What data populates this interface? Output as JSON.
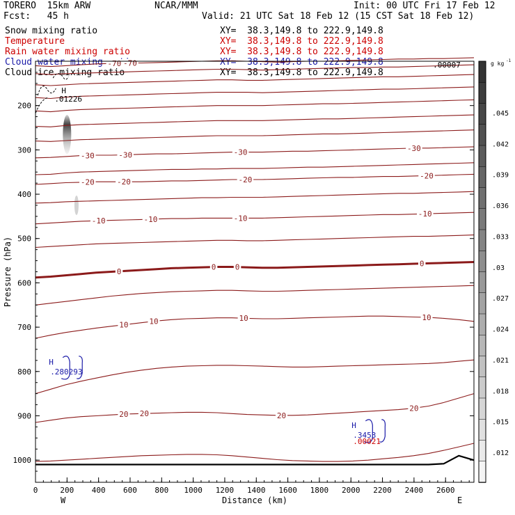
{
  "header": {
    "model": "TORERO  15km ARW",
    "org": "NCAR/MMM",
    "init": "Init: 00 UTC Fri 17 Feb 12",
    "fcst": "Fcst:   45 h",
    "valid": "Valid: 21 UTC Sat 18 Feb 12 (15 CST Sat 18 Feb 12)"
  },
  "fields": [
    {
      "name": "Snow mixing ratio",
      "xy": "XY=  38.3,149.8 to 222.9,149.8",
      "color": "#000000",
      "xy_color": "#000000"
    },
    {
      "name": "Temperature",
      "xy": "XY=  38.3,149.8 to 222.9,149.8",
      "color": "#cc0000",
      "xy_color": "#cc0000"
    },
    {
      "name": "Rain water mixing ratio",
      "xy": "XY=  38.3,149.8 to 222.9,149.8",
      "color": "#cc0000",
      "xy_color": "#cc0000"
    },
    {
      "name": "Cloud water mixing ratio",
      "xy": "XY=  38.3,149.8 to 222.9,149.8",
      "color": "#1a1aa8",
      "xy_color": "#1a1aa8"
    },
    {
      "name": "Cloud ice mixing ratio",
      "xy": "XY=  38.3,149.8 to 222.9,149.8",
      "color": "#000000",
      "xy_color": "#000000"
    }
  ],
  "chart_data": {
    "type": "contour-cross-section",
    "xlabel": "Distance (km)",
    "ylabel": "Pressure (hPa)",
    "xlim": [
      0,
      2780
    ],
    "ylim": [
      1050,
      100
    ],
    "x_ticks": [
      0,
      200,
      400,
      600,
      800,
      1000,
      1200,
      1400,
      1600,
      1800,
      2000,
      2200,
      2400,
      2600
    ],
    "y_ticks": [
      200,
      300,
      400,
      500,
      600,
      700,
      800,
      900,
      1000
    ],
    "x_endpoints": [
      "W",
      "E"
    ],
    "colorbar": {
      "unit": "g kg",
      "unit_exp": "-1",
      "tick_labels": [
        ".045",
        ".042",
        ".039",
        ".036",
        ".033",
        ".03",
        ".027",
        ".024",
        ".021",
        ".018",
        ".015",
        ".012"
      ],
      "levels": 20,
      "dark_color": "#333333",
      "light_color": "#f4f4f4"
    },
    "snow_max_label": ".01226",
    "snow_max_location": [
      200,
      185
    ],
    "top_label": ".00007",
    "max_marker": "H",
    "cloud_water_points": [
      {
        "label": ".280293",
        "x": 120,
        "p": 800
      },
      {
        "label": ".3453",
        "x": 2040,
        "p": 943
      }
    ],
    "rain_points": [
      {
        "label": ".00021",
        "x": 2040,
        "p": 957
      }
    ],
    "temperature_contours": [
      {
        "label": "-70",
        "p": [
          110,
          112,
          110,
          108,
          106,
          105,
          104,
          104,
          103,
          102,
          101,
          100,
          99,
          99,
          100,
          101,
          102,
          101,
          100,
          100,
          99,
          98,
          97,
          96,
          95,
          95,
          94,
          94,
          93,
          92
        ],
        "label_at": [
          500,
          600
        ]
      },
      {
        "label": "",
        "p": [
          128,
          130,
          128,
          127,
          126,
          125,
          124,
          123,
          122,
          121,
          120,
          119,
          118,
          118,
          119,
          120,
          119,
          118,
          117,
          116,
          115,
          114,
          114,
          113,
          113,
          112,
          111,
          110,
          109,
          108
        ],
        "label_at": []
      },
      {
        "label": "",
        "p": [
          153,
          155,
          153,
          151,
          150,
          149,
          148,
          147,
          146,
          145,
          144,
          143,
          142,
          142,
          143,
          143,
          142,
          141,
          140,
          139,
          138,
          137,
          136,
          135,
          135,
          134,
          133,
          132,
          131,
          130
        ],
        "label_at": []
      },
      {
        "label": "",
        "p": [
          182,
          184,
          181,
          179,
          178,
          177,
          176,
          175,
          174,
          173,
          172,
          171,
          170,
          170,
          170,
          171,
          170,
          169,
          168,
          167,
          166,
          165,
          164,
          163,
          163,
          162,
          161,
          160,
          159,
          158
        ],
        "label_at": []
      },
      {
        "label": "",
        "p": [
          212,
          214,
          211,
          209,
          208,
          207,
          206,
          205,
          204,
          203,
          202,
          201,
          200,
          200,
          200,
          200,
          199,
          198,
          197,
          196,
          196,
          195,
          194,
          193,
          192,
          191,
          190,
          189,
          188,
          187
        ],
        "label_at": []
      },
      {
        "label": "",
        "p": [
          247,
          248,
          245,
          243,
          242,
          241,
          240,
          239,
          238,
          237,
          236,
          235,
          234,
          234,
          234,
          234,
          233,
          232,
          231,
          230,
          230,
          229,
          228,
          227,
          226,
          225,
          224,
          223,
          222,
          221
        ],
        "label_at": []
      },
      {
        "label": "",
        "p": [
          280,
          281,
          279,
          277,
          276,
          275,
          274,
          273,
          272,
          271,
          270,
          269,
          268,
          268,
          268,
          268,
          267,
          266,
          265,
          264,
          264,
          263,
          262,
          261,
          260,
          259,
          258,
          257,
          256,
          255
        ],
        "label_at": []
      },
      {
        "label": "-30",
        "p": [
          318,
          317,
          315,
          313,
          312,
          312,
          311,
          310,
          309,
          309,
          308,
          307,
          306,
          305,
          305,
          305,
          304,
          303,
          303,
          302,
          301,
          300,
          299,
          298,
          297,
          296,
          296,
          295,
          294,
          293
        ],
        "label_at": [
          330,
          570,
          1300,
          2400
        ]
      },
      {
        "label": "",
        "p": [
          356,
          355,
          352,
          350,
          349,
          348,
          347,
          346,
          345,
          344,
          344,
          343,
          343,
          342,
          342,
          342,
          341,
          340,
          339,
          339,
          338,
          337,
          336,
          335,
          334,
          333,
          332,
          331,
          330,
          329
        ],
        "label_at": []
      },
      {
        "label": "-20",
        "p": [
          378,
          376,
          374,
          373,
          372,
          372,
          372,
          372,
          371,
          370,
          370,
          369,
          368,
          367,
          367,
          367,
          366,
          365,
          364,
          363,
          362,
          362,
          361,
          360,
          360,
          359,
          358,
          357,
          356,
          355
        ],
        "label_at": [
          330,
          560,
          1330,
          2480
        ]
      },
      {
        "label": "",
        "p": [
          420,
          419,
          417,
          416,
          415,
          414,
          413,
          412,
          411,
          410,
          409,
          408,
          408,
          407,
          407,
          407,
          406,
          405,
          404,
          403,
          402,
          401,
          400,
          399,
          398,
          398,
          397,
          396,
          395,
          394
        ],
        "label_at": []
      },
      {
        "label": "-10",
        "p": [
          467,
          465,
          463,
          461,
          460,
          459,
          458,
          457,
          456,
          455,
          455,
          454,
          454,
          454,
          454,
          454,
          453,
          452,
          451,
          450,
          449,
          448,
          447,
          446,
          446,
          445,
          444,
          443,
          442,
          441
        ],
        "label_at": [
          400,
          730,
          1300,
          2470
        ]
      },
      {
        "label": "",
        "p": [
          520,
          518,
          516,
          514,
          512,
          511,
          510,
          509,
          508,
          507,
          506,
          505,
          504,
          504,
          505,
          505,
          504,
          503,
          502,
          501,
          500,
          499,
          498,
          497,
          496,
          495,
          495,
          494,
          493,
          492
        ],
        "label_at": []
      },
      {
        "label": "0",
        "p": [
          588,
          586,
          583,
          580,
          577,
          575,
          573,
          571,
          569,
          567,
          566,
          565,
          564,
          564,
          565,
          566,
          566,
          565,
          564,
          563,
          562,
          561,
          560,
          559,
          558,
          557,
          556,
          555,
          554,
          553
        ],
        "label_at": [
          530,
          1130,
          1280,
          2450
        ],
        "heavy": true
      },
      {
        "label": "",
        "p": [
          650,
          646,
          642,
          638,
          634,
          630,
          627,
          624,
          622,
          620,
          619,
          618,
          617,
          617,
          618,
          619,
          619,
          618,
          617,
          616,
          615,
          614,
          613,
          612,
          611,
          610,
          609,
          608,
          607,
          606
        ],
        "label_at": []
      },
      {
        "label": "10",
        "p": [
          725,
          718,
          712,
          707,
          702,
          698,
          694,
          690,
          686,
          683,
          681,
          680,
          679,
          679,
          680,
          681,
          681,
          680,
          679,
          678,
          677,
          676,
          675,
          675,
          676,
          677,
          678,
          680,
          683,
          687
        ],
        "label_at": [
          560,
          750,
          1320,
          2480
        ]
      },
      {
        "label": "",
        "p": [
          850,
          840,
          830,
          822,
          815,
          808,
          802,
          797,
          793,
          790,
          788,
          787,
          786,
          786,
          787,
          788,
          789,
          790,
          790,
          789,
          788,
          787,
          786,
          785,
          784,
          783,
          782,
          780,
          777,
          774
        ],
        "label_at": []
      },
      {
        "label": "20",
        "p": [
          915,
          910,
          905,
          902,
          900,
          898,
          896,
          895,
          894,
          893,
          892,
          892,
          893,
          895,
          897,
          898,
          899,
          899,
          898,
          896,
          894,
          892,
          890,
          888,
          886,
          883,
          878,
          870,
          860,
          850
        ],
        "label_at": [
          560,
          690,
          1560,
          2400
        ]
      },
      {
        "label": "",
        "p": [
          1003,
          1002,
          1000,
          998,
          996,
          994,
          992,
          990,
          989,
          988,
          987,
          987,
          988,
          990,
          993,
          996,
          999,
          1001,
          1002,
          1003,
          1003,
          1002,
          1000,
          997,
          994,
          990,
          985,
          978,
          970,
          962
        ],
        "label_at": []
      }
    ],
    "terrain": {
      "p": [
        1010,
        1010,
        1010,
        1010,
        1010,
        1010,
        1010,
        1010,
        1010,
        1010,
        1010,
        1010,
        1010,
        1010,
        1010,
        1010,
        1010,
        1010,
        1010,
        1010,
        1010,
        1010,
        1010,
        1010,
        1010,
        1010,
        1010,
        1008,
        990,
        1000
      ],
      "color": "#000000"
    },
    "temp_color": "#8b1a1a"
  }
}
